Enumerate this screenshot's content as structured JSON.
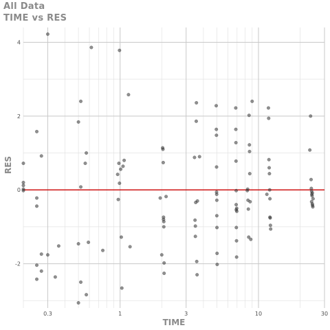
{
  "chart_data": {
    "type": "scatter",
    "title": "All Data",
    "subtitle": "TIME vs RES",
    "xlabel": "TIME",
    "ylabel": "RES",
    "x_scale": "log",
    "xlim": [
      0.2,
      30
    ],
    "ylim": [
      -3.2,
      4.4
    ],
    "x_ticks": [
      0.3,
      1,
      3,
      10,
      30
    ],
    "x_tick_labels": [
      "0.3",
      "1",
      "3",
      "10",
      "30"
    ],
    "y_ticks": [
      -2,
      0,
      2,
      4
    ],
    "y_tick_labels": [
      "-2",
      "0",
      "2",
      "4"
    ],
    "grid": true,
    "reference_line": 0,
    "reference_line_color": "#cc0000",
    "point_color": "#333333",
    "points": [
      [
        0.2,
        0.72
      ],
      [
        0.2,
        0.2
      ],
      [
        0.2,
        0.12
      ],
      [
        0.2,
        0.02
      ],
      [
        0.2,
        -0.02
      ],
      [
        0.25,
        1.58
      ],
      [
        0.25,
        -0.22
      ],
      [
        0.25,
        -0.44
      ],
      [
        0.25,
        -2.04
      ],
      [
        0.25,
        -2.42
      ],
      [
        0.27,
        0.92
      ],
      [
        0.27,
        -1.74
      ],
      [
        0.27,
        -2.2
      ],
      [
        0.3,
        4.22
      ],
      [
        0.3,
        -1.76
      ],
      [
        0.34,
        -2.36
      ],
      [
        0.36,
        -1.52
      ],
      [
        0.5,
        1.84
      ],
      [
        0.5,
        -1.46
      ],
      [
        0.5,
        -3.06
      ],
      [
        0.52,
        2.4
      ],
      [
        0.52,
        0.08
      ],
      [
        0.52,
        -2.5
      ],
      [
        0.56,
        0.72
      ],
      [
        0.57,
        1.0
      ],
      [
        0.57,
        -2.84
      ],
      [
        0.59,
        -1.42
      ],
      [
        0.62,
        3.86
      ],
      [
        0.75,
        -1.64
      ],
      [
        0.96,
        0.42
      ],
      [
        0.97,
        -0.26
      ],
      [
        0.98,
        0.72
      ],
      [
        0.99,
        0.18
      ],
      [
        0.99,
        3.78
      ],
      [
        1.01,
        0.56
      ],
      [
        1.02,
        -1.28
      ],
      [
        1.03,
        -2.66
      ],
      [
        1.05,
        0.64
      ],
      [
        1.07,
        0.8
      ],
      [
        1.15,
        2.58
      ],
      [
        1.18,
        -1.54
      ],
      [
        1.95,
        -0.22
      ],
      [
        2.0,
        -1.76
      ],
      [
        2.03,
        1.14
      ],
      [
        2.04,
        1.1
      ],
      [
        2.05,
        0.74
      ],
      [
        2.06,
        -0.74
      ],
      [
        2.06,
        -0.8
      ],
      [
        2.07,
        -0.86
      ],
      [
        2.07,
        -1.0
      ],
      [
        2.08,
        -1.98
      ],
      [
        2.08,
        -2.26
      ],
      [
        2.15,
        -0.18
      ],
      [
        3.45,
        0.88
      ],
      [
        3.48,
        -0.82
      ],
      [
        3.5,
        -0.98
      ],
      [
        3.5,
        -1.26
      ],
      [
        3.52,
        -0.34
      ],
      [
        3.55,
        1.86
      ],
      [
        3.56,
        2.36
      ],
      [
        3.58,
        -1.94
      ],
      [
        3.6,
        -2.3
      ],
      [
        3.62,
        -0.3
      ],
      [
        3.75,
        0.9
      ],
      [
        4.95,
        2.28
      ],
      [
        4.96,
        1.64
      ],
      [
        4.97,
        1.48
      ],
      [
        4.98,
        0.62
      ],
      [
        4.98,
        -0.06
      ],
      [
        4.99,
        -0.12
      ],
      [
        5.0,
        -0.28
      ],
      [
        5.0,
        -0.7
      ],
      [
        5.01,
        -1.02
      ],
      [
        5.02,
        -1.72
      ],
      [
        5.03,
        -2.02
      ],
      [
        6.85,
        2.22
      ],
      [
        6.86,
        1.64
      ],
      [
        6.87,
        1.28
      ],
      [
        6.88,
        0.78
      ],
      [
        6.9,
        -0.02
      ],
      [
        6.9,
        -0.4
      ],
      [
        6.91,
        -0.54
      ],
      [
        6.92,
        -1.02
      ],
      [
        6.94,
        -1.38
      ],
      [
        6.95,
        -1.82
      ],
      [
        6.96,
        -0.5
      ],
      [
        6.97,
        -0.58
      ],
      [
        8.3,
        -0.02
      ],
      [
        8.35,
        0.02
      ],
      [
        8.4,
        -0.28
      ],
      [
        8.45,
        -0.52
      ],
      [
        8.5,
        -1.28
      ],
      [
        8.55,
        2.02
      ],
      [
        8.6,
        1.22
      ],
      [
        8.62,
        1.04
      ],
      [
        8.65,
        0.44
      ],
      [
        8.7,
        -0.32
      ],
      [
        8.8,
        -1.34
      ],
      [
        9.0,
        2.4
      ],
      [
        11.5,
        -0.12
      ],
      [
        11.8,
        2.22
      ],
      [
        11.85,
        1.94
      ],
      [
        11.9,
        0.82
      ],
      [
        11.95,
        0.6
      ],
      [
        12.0,
        0.44
      ],
      [
        12.05,
        0.0
      ],
      [
        12.1,
        -0.24
      ],
      [
        12.1,
        -0.74
      ],
      [
        12.15,
        -0.76
      ],
      [
        12.2,
        -0.96
      ],
      [
        12.25,
        -1.06
      ],
      [
        23.5,
        1.08
      ],
      [
        23.8,
        2.0
      ],
      [
        24.0,
        0.28
      ],
      [
        24.1,
        0.04
      ],
      [
        24.2,
        -0.04
      ],
      [
        24.3,
        -0.12
      ],
      [
        24.4,
        -0.16
      ],
      [
        24.5,
        -0.38
      ],
      [
        24.6,
        -0.42
      ],
      [
        24.7,
        -0.46
      ],
      [
        24.8,
        -0.24
      ],
      [
        24.5,
        -0.08
      ],
      [
        24.2,
        -0.32
      ]
    ]
  }
}
